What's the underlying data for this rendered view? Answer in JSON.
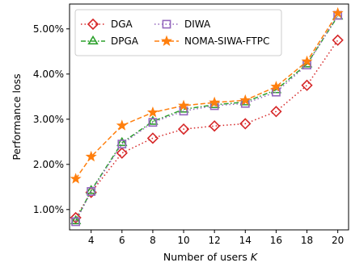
{
  "chart_data": {
    "type": "line",
    "xlabel": "Number of users",
    "xlabel_symbol": "K",
    "ylabel": "Performance loss",
    "x": [
      3,
      4,
      6,
      8,
      10,
      12,
      14,
      16,
      18,
      20
    ],
    "xticks": [
      4,
      6,
      8,
      10,
      12,
      14,
      16,
      18,
      20
    ],
    "xlim": [
      2.6,
      20.7
    ],
    "yticks": [
      1.0,
      2.0,
      3.0,
      4.0,
      5.0
    ],
    "ytick_labels": [
      "1.00%",
      "2.00%",
      "3.00%",
      "4.00%",
      "5.00%"
    ],
    "ylim": [
      0.55,
      5.55
    ],
    "grid": false,
    "legend_position": "upper-left",
    "series": [
      {
        "name": "DGA",
        "color": "#d62728",
        "marker": "diamond",
        "line_style": "dotted",
        "values": [
          0.82,
          1.38,
          2.25,
          2.58,
          2.78,
          2.85,
          2.9,
          3.17,
          3.75,
          4.75
        ]
      },
      {
        "name": "DPGA",
        "color": "#2ca02c",
        "marker": "triangle",
        "line_style": "dashdot",
        "values": [
          0.75,
          1.42,
          2.48,
          2.95,
          3.22,
          3.32,
          3.38,
          3.65,
          4.22,
          5.28
        ]
      },
      {
        "name": "DIWA",
        "color": "#9467bd",
        "marker": "square",
        "line_style": "dotted",
        "values": [
          0.73,
          1.4,
          2.45,
          2.93,
          3.18,
          3.3,
          3.35,
          3.6,
          4.2,
          5.3
        ]
      },
      {
        "name": "NOMA-SIWA-FTPC",
        "color": "#ff7f0e",
        "marker": "star",
        "line_style": "dashed",
        "values": [
          1.68,
          2.17,
          2.86,
          3.15,
          3.3,
          3.37,
          3.42,
          3.72,
          4.28,
          5.35
        ]
      }
    ]
  }
}
